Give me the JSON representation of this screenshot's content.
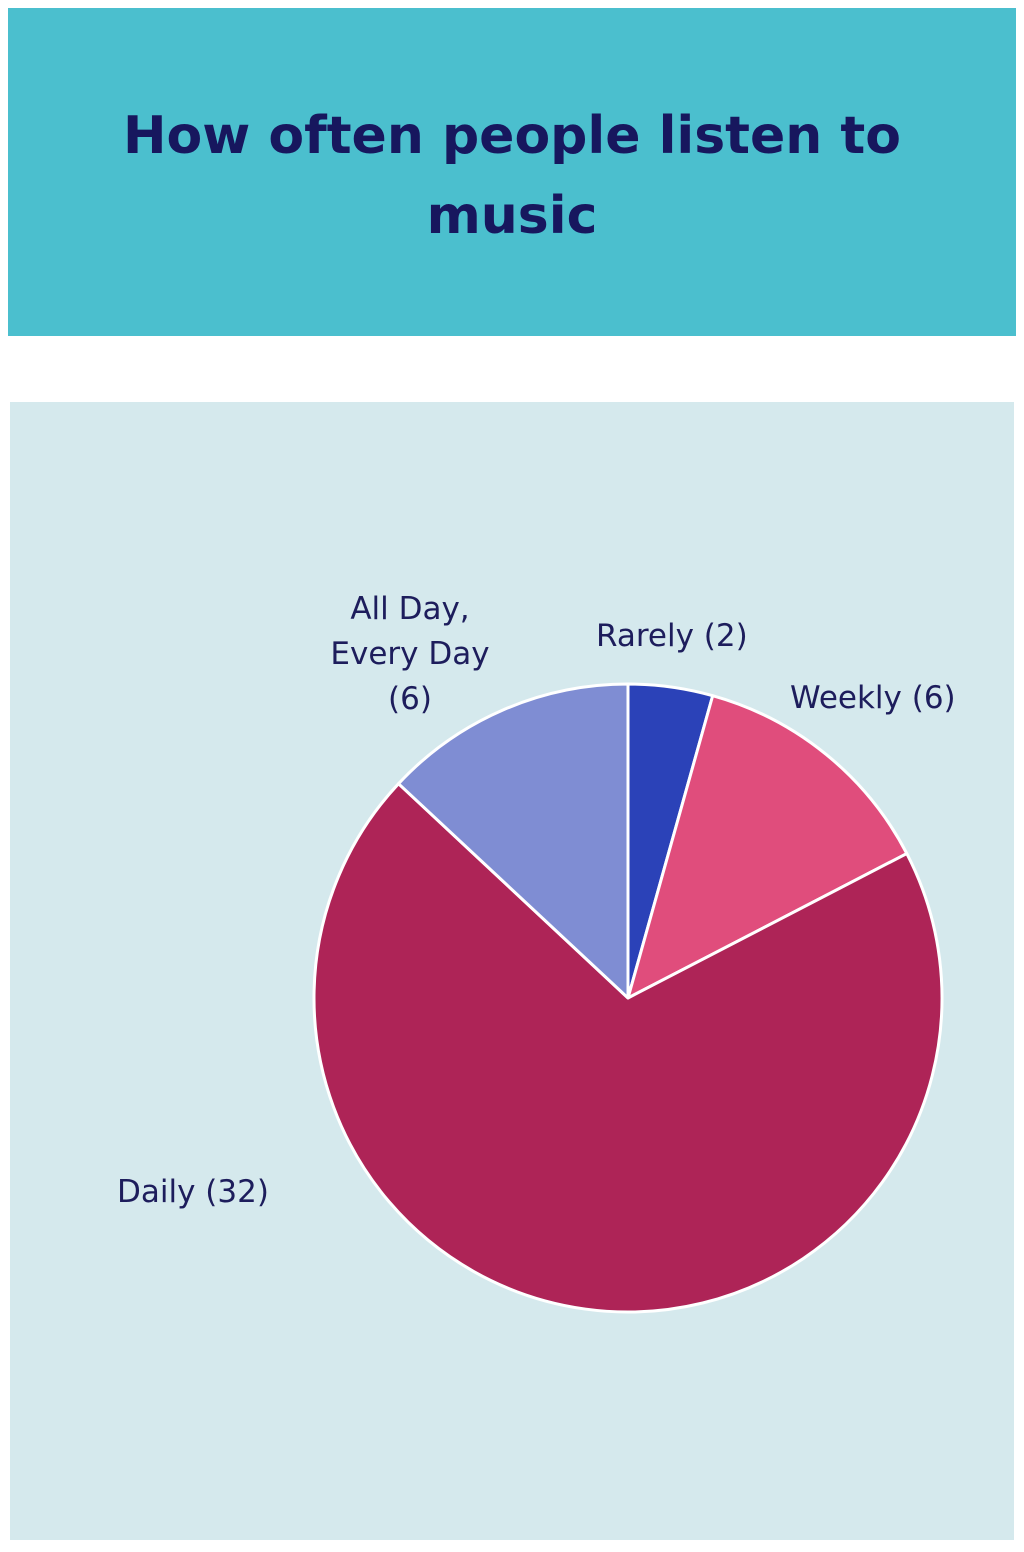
{
  "title": "How often people listen to music",
  "chart_data": {
    "type": "pie",
    "title": "How often people listen to music",
    "slices": [
      {
        "label": "Rarely",
        "value": 2,
        "display": "Rarely (2)",
        "color": "#2b42b8"
      },
      {
        "label": "Weekly",
        "value": 6,
        "display": "Weekly (6)",
        "color": "#e04d7c"
      },
      {
        "label": "Daily",
        "value": 32,
        "display": "Daily (32)",
        "color": "#ae2457"
      },
      {
        "label": "All Day, Every Day",
        "value": 6,
        "display_lines": [
          "All Day,",
          "Every Day",
          "(6)"
        ],
        "color": "#7f8dd3"
      }
    ],
    "start": "12 o'clock",
    "direction": "clockwise",
    "legend": "none",
    "labels": "outside"
  },
  "colors": {
    "header_background": "#4bbfce",
    "chart_background": "#d5e9ed",
    "title_text": "#17175e",
    "label_text": "#1d1d5c",
    "slice_border": "#ffffff"
  }
}
